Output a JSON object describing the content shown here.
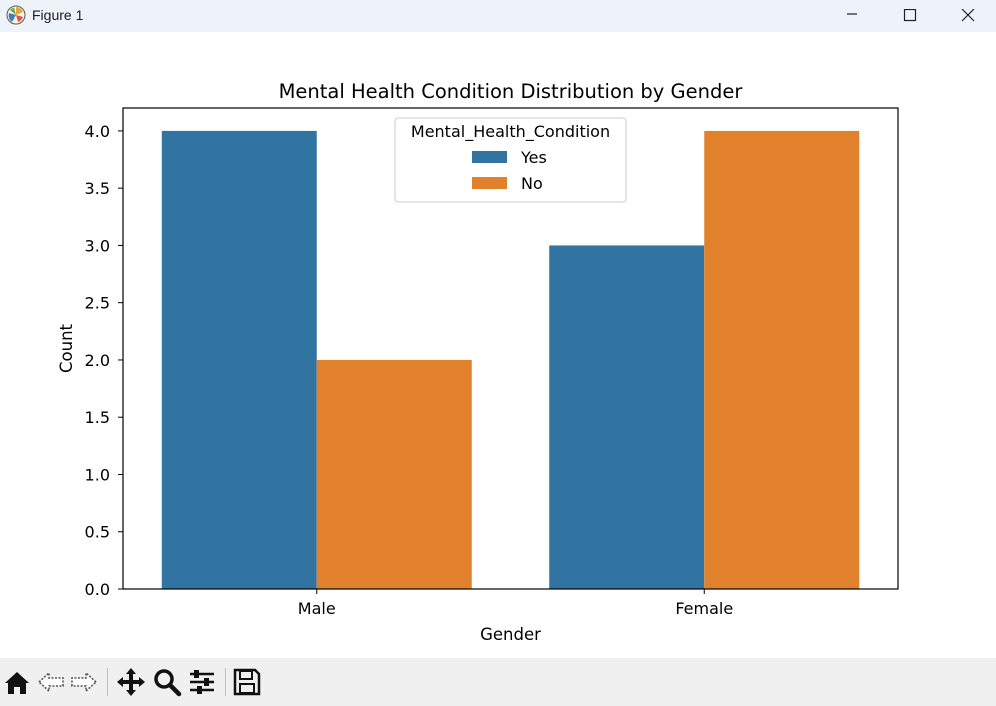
{
  "window": {
    "title": "Figure 1",
    "controls": [
      "minimize-icon",
      "maximize-icon",
      "close-icon"
    ]
  },
  "toolbar": {
    "items": [
      "home-icon",
      "back-icon",
      "forward-icon",
      "pan-icon",
      "zoom-icon",
      "configure-subplots-icon",
      "save-icon"
    ]
  },
  "colors": {
    "series_yes": "#3274a1",
    "series_no": "#e1812c",
    "titlebar_bg": "#eef2f9",
    "toolbar_bg": "#f0f0f0"
  },
  "chart_data": {
    "type": "bar",
    "title": "Mental Health Condition Distribution by Gender",
    "xlabel": "Gender",
    "ylabel": "Count",
    "categories": [
      "Male",
      "Female"
    ],
    "series": [
      {
        "name": "Yes",
        "values": [
          4,
          3
        ]
      },
      {
        "name": "No",
        "values": [
          2,
          4
        ]
      }
    ],
    "ylim": [
      0,
      4.2
    ],
    "yticks": [
      "0.0",
      "0.5",
      "1.0",
      "1.5",
      "2.0",
      "2.5",
      "3.0",
      "3.5",
      "4.0"
    ],
    "legend": {
      "title": "Mental_Health_Condition",
      "placement": "top-center"
    },
    "grid": false
  }
}
